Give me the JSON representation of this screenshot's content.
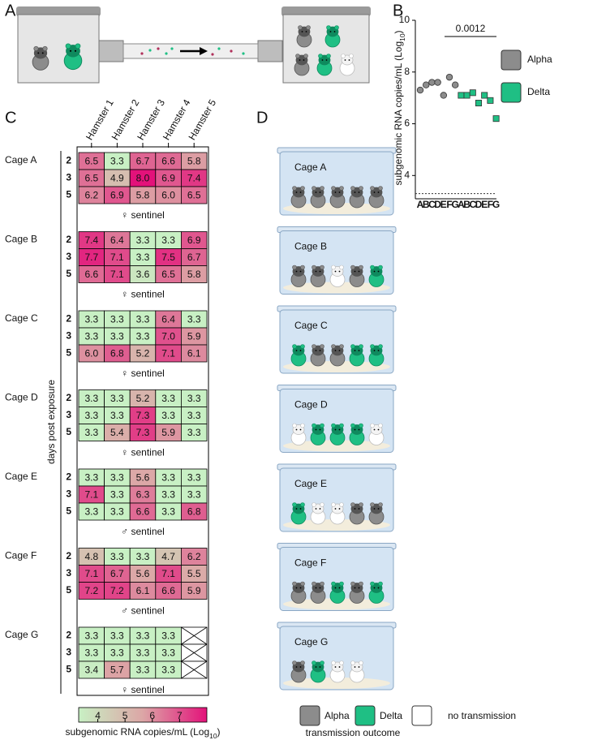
{
  "panel_labels": [
    "A",
    "B",
    "C",
    "D"
  ],
  "chart_data": [
    {
      "type": "scatter",
      "y_label": [
        "subgenomic RNA copies/mL (Log",
        "10",
        ")"
      ],
      "categories": [
        "A",
        "B",
        "C",
        "D",
        "E",
        "F",
        "G",
        "A",
        "B",
        "C",
        "D",
        "E",
        "F",
        "G"
      ],
      "series": [
        {
          "name": "Alpha",
          "color": "#8c8c8c",
          "marker": "circle",
          "values": [
            7.3,
            7.5,
            7.6,
            7.6,
            7.1,
            7.8,
            7.5,
            null,
            null,
            null,
            null,
            null,
            null,
            null
          ]
        },
        {
          "name": "Delta",
          "color": "#1fbf84",
          "marker": "square",
          "values": [
            null,
            null,
            null,
            null,
            null,
            null,
            null,
            7.1,
            7.1,
            7.2,
            6.8,
            7.1,
            6.9,
            6.2
          ]
        }
      ],
      "ylim": [
        3.1,
        10
      ],
      "yticks": [
        4,
        6,
        8,
        10
      ],
      "reference_line": 3.3,
      "annotation": "0.0012"
    },
    {
      "type": "heatmap",
      "y_label": "days post exposure",
      "columns": [
        "Hamster 1",
        "Hamster 2",
        "Hamster 3",
        "Hamster 4",
        "Hamster 5"
      ],
      "days": [
        2,
        3,
        5
      ],
      "colors": [
        "#c8f0c4",
        "#dca6a6",
        "#e3127a"
      ],
      "clim": [
        3.3,
        8
      ],
      "colorbar_ticks": [
        4,
        5,
        6,
        7
      ],
      "colorbar_label": [
        "subgenomic RNA copies/mL (Log",
        "10",
        ")"
      ],
      "groups": [
        {
          "label": "Cage A",
          "sentinel": "♀ sentinel",
          "values": [
            [
              6.5,
              3.3,
              6.7,
              6.6,
              5.8
            ],
            [
              6.5,
              4.9,
              8,
              6.9,
              7.4
            ],
            [
              6.2,
              6.9,
              5.8,
              6,
              6.5
            ]
          ],
          "value_labels": [
            [
              "6.5",
              "3.3",
              "6.7",
              "6.6",
              "5.8"
            ],
            [
              "6.5",
              "4.9",
              "8.0",
              "6.9",
              "7.4"
            ],
            [
              "6.2",
              "6.9",
              "5.8",
              "6.0",
              "6.5"
            ]
          ]
        },
        {
          "label": "Cage B",
          "sentinel": "♀ sentinel",
          "values": [
            [
              7.4,
              6.4,
              3.3,
              3.3,
              6.9
            ],
            [
              7.7,
              7.1,
              3.3,
              7.5,
              6.7
            ],
            [
              6.6,
              7.1,
              3.6,
              6.5,
              5.8
            ]
          ]
        },
        {
          "label": "Cage C",
          "sentinel": "♀ sentinel",
          "values": [
            [
              3.3,
              3.3,
              3.3,
              6.4,
              3.3
            ],
            [
              3.3,
              3.3,
              3.3,
              7,
              5.9
            ],
            [
              6,
              6.8,
              5.2,
              7.1,
              6.1
            ]
          ],
          "value_labels": [
            [
              "3.3",
              "3.3",
              "3.3",
              "6.4",
              "3.3"
            ],
            [
              "3.3",
              "3.3",
              "3.3",
              "7.0",
              "5.9"
            ],
            [
              "6.0",
              "6.8",
              "5.2",
              "7.1",
              "6.1"
            ]
          ]
        },
        {
          "label": "Cage D",
          "sentinel": "♀ sentinel",
          "values": [
            [
              3.3,
              3.3,
              5.2,
              3.3,
              3.3
            ],
            [
              3.3,
              3.3,
              7.3,
              3.3,
              3.3
            ],
            [
              3.3,
              5.4,
              7.3,
              5.9,
              3.3
            ]
          ]
        },
        {
          "label": "Cage E",
          "sentinel": "♂ sentinel",
          "values": [
            [
              3.3,
              3.3,
              5.6,
              3.3,
              3.3
            ],
            [
              7.1,
              3.3,
              6.3,
              3.3,
              3.3
            ],
            [
              3.3,
              3.3,
              6.6,
              3.3,
              6.8
            ]
          ]
        },
        {
          "label": "Cage F",
          "sentinel": "♂ sentinel",
          "values": [
            [
              4.8,
              3.3,
              3.3,
              4.7,
              6.2
            ],
            [
              7.1,
              6.7,
              5.6,
              7.1,
              5.5
            ],
            [
              7.2,
              7.2,
              6.1,
              6.6,
              5.9
            ]
          ]
        },
        {
          "label": "Cage G",
          "sentinel": "♀ sentinel",
          "values": [
            [
              3.3,
              3.3,
              3.3,
              3.3,
              null
            ],
            [
              3.3,
              3.3,
              3.3,
              3.3,
              null
            ],
            [
              3.4,
              5.7,
              3.3,
              3.3,
              null
            ]
          ]
        }
      ]
    }
  ],
  "diagram": {
    "legend": [
      {
        "label": "Alpha",
        "color": "#8c8c8c"
      },
      {
        "label": "Delta",
        "color": "#1fbf84"
      },
      {
        "label": "no transmission",
        "color": "#ffffff"
      }
    ],
    "legend_title": "transmission outcome",
    "cages": [
      {
        "label": "Cage A",
        "outcomes": [
          "Alpha",
          "Alpha",
          "Alpha",
          "Alpha",
          "Alpha"
        ]
      },
      {
        "label": "Cage B",
        "outcomes": [
          "Alpha",
          "Alpha",
          "no transmission",
          "Alpha",
          "Delta"
        ]
      },
      {
        "label": "Cage C",
        "outcomes": [
          "Delta",
          "Alpha",
          "Alpha",
          "Delta",
          "Delta"
        ]
      },
      {
        "label": "Cage D",
        "outcomes": [
          "no transmission",
          "Delta",
          "Delta",
          "Delta",
          "no transmission"
        ]
      },
      {
        "label": "Cage E",
        "outcomes": [
          "Delta",
          "no transmission",
          "no transmission",
          "Alpha",
          "Alpha"
        ]
      },
      {
        "label": "Cage F",
        "outcomes": [
          "Alpha",
          "Alpha",
          "Delta",
          "Alpha",
          "Delta"
        ]
      },
      {
        "label": "Cage G",
        "outcomes": [
          "Alpha",
          "Delta",
          "no transmission",
          "no transmission"
        ]
      }
    ]
  }
}
